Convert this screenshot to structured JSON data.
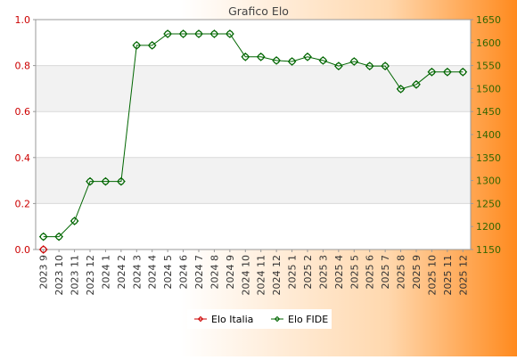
{
  "chart_data": {
    "type": "line",
    "title": "Grafico Elo",
    "categories": [
      "2023 9",
      "2023 10",
      "2023 11",
      "2023 12",
      "2024 1",
      "2024 2",
      "2024 3",
      "2024 4",
      "2024 5",
      "2024 6",
      "2024 7",
      "2024 8",
      "2024 9",
      "2024 10",
      "2024 11",
      "2024 12",
      "2025 1",
      "2025 2",
      "2025 3",
      "2025 4",
      "2025 5",
      "2025 6",
      "2025 7",
      "2025 8",
      "2025 9",
      "2025 10",
      "2025 11",
      "2025 12"
    ],
    "left_axis": {
      "ylim": [
        0.0,
        1.0
      ],
      "ticks": [
        "0.0",
        "0.2",
        "0.4",
        "0.6",
        "0.8",
        "1.0"
      ],
      "color": "#cc0000"
    },
    "right_axis": {
      "ylim": [
        1150,
        1650
      ],
      "ticks": [
        "1150",
        "1200",
        "1250",
        "1300",
        "1350",
        "1400",
        "1450",
        "1500",
        "1550",
        "1600",
        "1650"
      ],
      "color": "#336600"
    },
    "series": [
      {
        "name": "Elo Italia",
        "axis": "left",
        "color": "#cc0000",
        "values": [
          0,
          null,
          null,
          null,
          null,
          null,
          null,
          null,
          null,
          null,
          null,
          null,
          null,
          null,
          null,
          null,
          null,
          null,
          null,
          null,
          null,
          null,
          null,
          null,
          null,
          null,
          null,
          null
        ]
      },
      {
        "name": "Elo FIDE",
        "axis": "right",
        "color": "#006600",
        "values": [
          1178,
          1178,
          1212,
          1298,
          1298,
          1298,
          1594,
          1594,
          1619,
          1619,
          1619,
          1619,
          1619,
          1569,
          1569,
          1561,
          1559,
          1569,
          1561,
          1549,
          1559,
          1549,
          1549,
          1499,
          1509,
          1536,
          1536,
          1536
        ]
      }
    ],
    "grid": true,
    "legend": "bottom-center",
    "legend_entries": [
      "Elo Italia",
      "Elo FIDE"
    ]
  }
}
